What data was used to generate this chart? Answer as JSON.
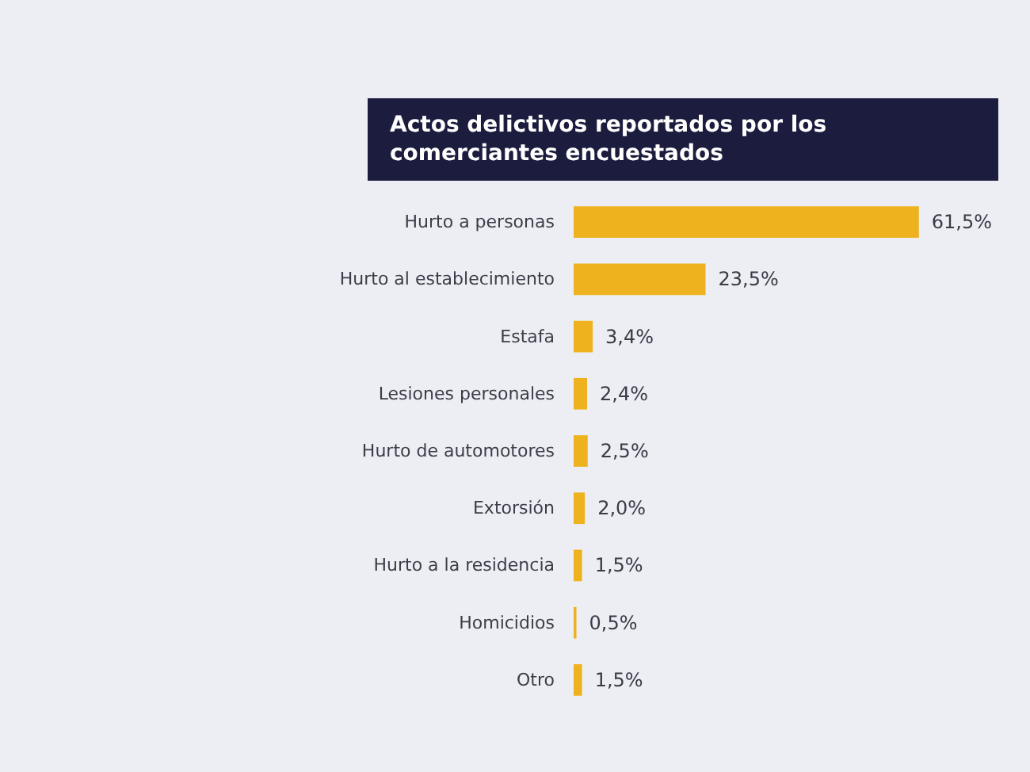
{
  "chart_data": {
    "type": "bar",
    "orientation": "horizontal",
    "title": "Actos delictivos reportados por los comerciantes encuestados",
    "categories": [
      "Hurto a personas",
      "Hurto al establecimiento",
      "Estafa",
      "Lesiones personales",
      "Hurto de automotores",
      "Extorsión",
      "Hurto a la residencia",
      "Homicidios",
      "Otro"
    ],
    "values": [
      61.5,
      23.5,
      3.4,
      2.4,
      2.5,
      2.0,
      1.5,
      0.5,
      1.5
    ],
    "value_labels": [
      "61,5%",
      "23,5%",
      "3,4%",
      "2,4%",
      "2,5%",
      "2,0%",
      "1,5%",
      "0,5%",
      "1,5%"
    ],
    "color": "#efb21f"
  }
}
